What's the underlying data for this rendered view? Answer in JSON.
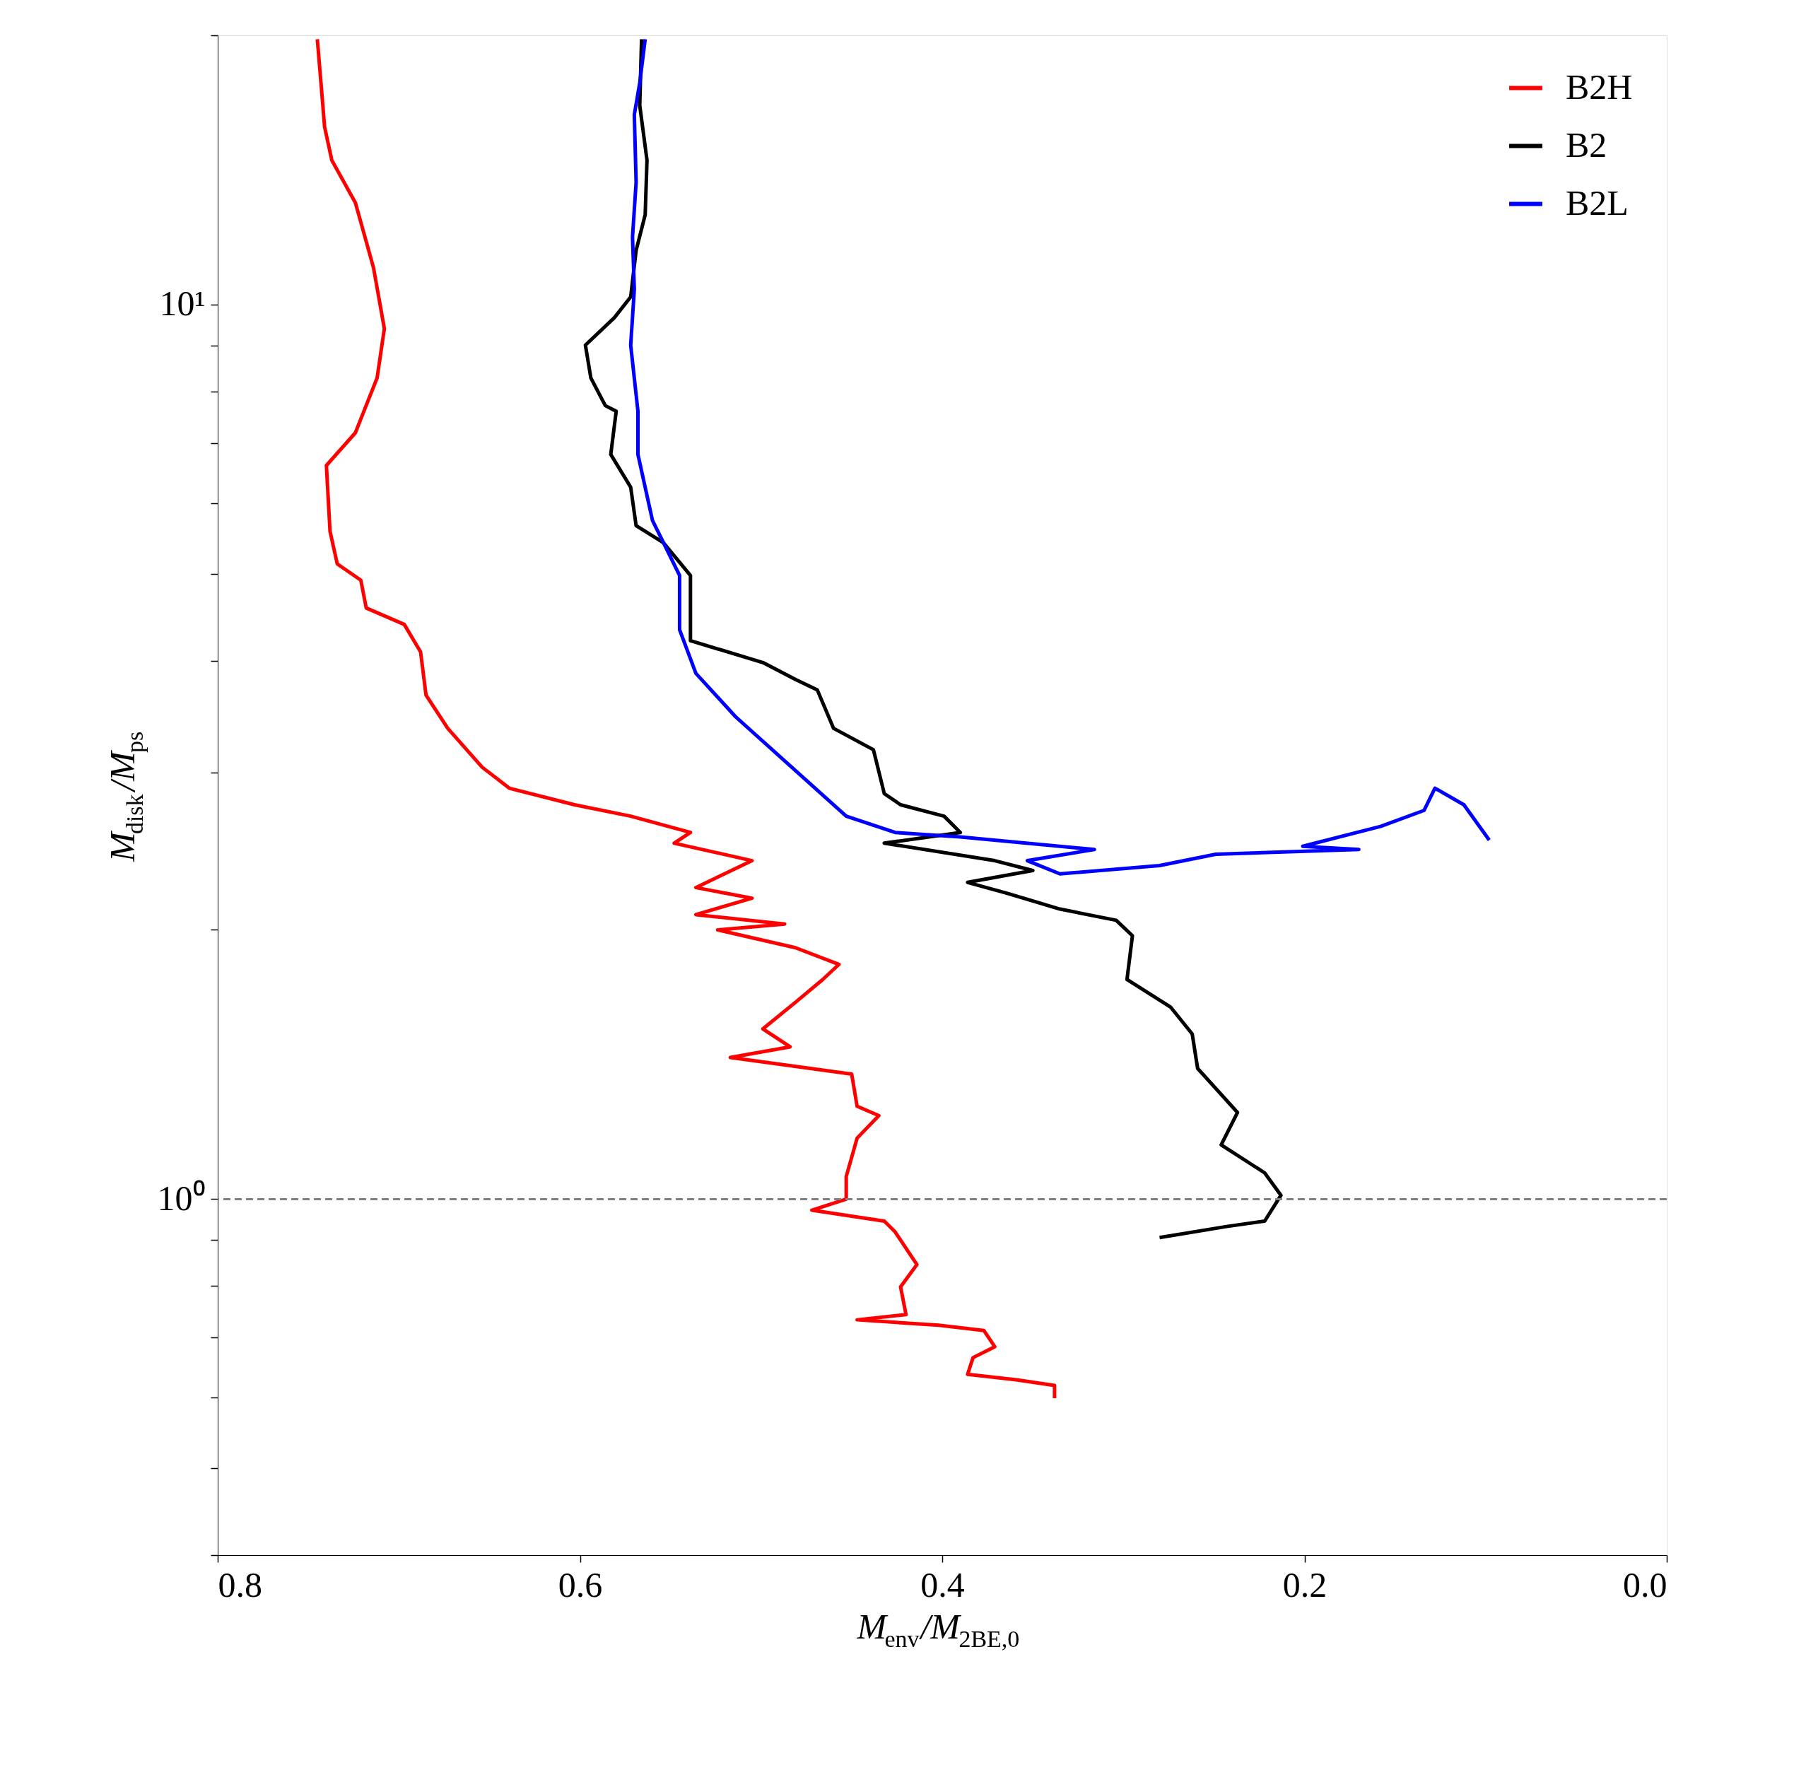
{
  "chart_data": {
    "type": "line",
    "xlabel": "M$_{env}$/M$_{2BE,0}$",
    "ylabel": "M$_{disk}$/M$_{ps}$",
    "log": "y",
    "grid": false,
    "legend": "top right",
    "line_style": "solid",
    "marker": "none",
    "xlim": [
      0.8,
      0.0
    ],
    "xticks": [
      0.8,
      0.6,
      0.4,
      0.2,
      {
        "value": 0,
        "label": "0.0"
      }
    ],
    "ylim": [
      0.4,
      20
    ],
    "yticks": [
      {
        "value": 0.4,
        "label": null
      },
      {
        "value": 0.5,
        "label": null
      },
      {
        "value": 0.6,
        "label": null
      },
      {
        "value": 0.7,
        "label": null
      },
      {
        "value": 0.8,
        "label": null
      },
      {
        "value": 0.9,
        "label": null
      },
      {
        "value": 1,
        "label": "10⁰"
      },
      {
        "value": 2,
        "label": null
      },
      {
        "value": 3,
        "label": null
      },
      {
        "value": 4,
        "label": null
      },
      {
        "value": 5,
        "label": null
      },
      {
        "value": 6,
        "label": null
      },
      {
        "value": 7,
        "label": null
      },
      {
        "value": 8,
        "label": null
      },
      {
        "value": 9,
        "label": null
      },
      {
        "value": 10,
        "label": "10¹"
      },
      {
        "value": 20,
        "label": null
      }
    ],
    "ref_lines": [
      {
        "axis": "y",
        "value": 1,
        "label": null,
        "color": "#808080",
        "line_style": "dashed"
      }
    ],
    "series": [
      {
        "name": "B2H",
        "color": "#ff0000",
        "x": [
          0.745,
          0.743,
          0.741,
          0.737,
          0.724,
          0.714,
          0.708,
          0.712,
          0.724,
          0.74,
          0.738,
          0.734,
          0.721,
          0.718,
          0.697,
          0.688,
          0.685,
          0.673,
          0.654,
          0.639,
          0.603,
          0.572,
          0.539,
          0.548,
          0.505,
          0.536,
          0.505,
          0.536,
          0.487,
          0.524,
          0.481,
          0.457,
          0.466,
          0.481,
          0.499,
          0.484,
          0.517,
          0.45,
          0.447,
          0.435,
          0.447,
          0.453,
          0.453,
          0.472,
          0.432,
          0.426,
          0.414,
          0.423,
          0.42,
          0.447,
          0.402,
          0.377,
          0.371,
          0.383,
          0.386,
          0.359,
          0.338,
          0.338
        ],
        "values": [
          19.8,
          17.7,
          15.8,
          14.5,
          13.0,
          11.0,
          9.4,
          8.28,
          7.19,
          6.61,
          5.58,
          5.13,
          4.92,
          4.58,
          4.39,
          4.09,
          3.66,
          3.36,
          3.04,
          2.88,
          2.76,
          2.68,
          2.57,
          2.5,
          2.39,
          2.23,
          2.17,
          2.08,
          2.03,
          2.0,
          1.91,
          1.83,
          1.76,
          1.66,
          1.55,
          1.48,
          1.44,
          1.38,
          1.27,
          1.24,
          1.17,
          1.06,
          1.0,
          0.972,
          0.945,
          0.919,
          0.845,
          0.798,
          0.743,
          0.733,
          0.723,
          0.713,
          0.684,
          0.665,
          0.637,
          0.628,
          0.619,
          0.599
        ]
      },
      {
        "name": "B2",
        "color": "#000000",
        "x": [
          0.566,
          0.567,
          0.563,
          0.564,
          0.569,
          0.572,
          0.581,
          0.597,
          0.594,
          0.586,
          0.58,
          0.583,
          0.572,
          0.569,
          0.554,
          0.539,
          0.539,
          0.499,
          0.481,
          0.469,
          0.46,
          0.438,
          0.432,
          0.423,
          0.399,
          0.39,
          0.432,
          0.371,
          0.35,
          0.386,
          0.365,
          0.335,
          0.304,
          0.295,
          0.298,
          0.274,
          0.262,
          0.259,
          0.237,
          0.246,
          0.222,
          0.213,
          0.222,
          0.243,
          0.28
        ],
        "values": [
          19.8,
          16.7,
          14.5,
          12.6,
          11.5,
          10.2,
          9.67,
          9.01,
          8.28,
          7.71,
          7.6,
          6.8,
          6.25,
          5.66,
          5.42,
          4.98,
          4.21,
          3.98,
          3.81,
          3.71,
          3.36,
          3.18,
          2.84,
          2.76,
          2.68,
          2.57,
          2.5,
          2.39,
          2.33,
          2.26,
          2.2,
          2.11,
          2.05,
          1.97,
          1.76,
          1.64,
          1.53,
          1.4,
          1.25,
          1.15,
          1.07,
          1.01,
          0.945,
          0.932,
          0.906
        ]
      },
      {
        "name": "B2L",
        "color": "#0000ff",
        "x": [
          0.564,
          0.567,
          0.57,
          0.569,
          0.571,
          0.57,
          0.572,
          0.568,
          0.568,
          0.56,
          0.545,
          0.545,
          0.536,
          0.514,
          0.487,
          0.453,
          0.426,
          0.39,
          0.316,
          0.353,
          0.335,
          0.28,
          0.249,
          0.17,
          0.201,
          0.158,
          0.134,
          0.128,
          0.112,
          0.098
        ],
        "values": [
          19.8,
          17.7,
          16.3,
          13.7,
          11.9,
          10.4,
          9.01,
          7.6,
          6.8,
          5.74,
          4.98,
          4.33,
          3.87,
          3.46,
          3.09,
          2.68,
          2.57,
          2.54,
          2.46,
          2.39,
          2.31,
          2.36,
          2.43,
          2.46,
          2.48,
          2.61,
          2.72,
          2.88,
          2.76,
          2.52
        ]
      }
    ]
  }
}
